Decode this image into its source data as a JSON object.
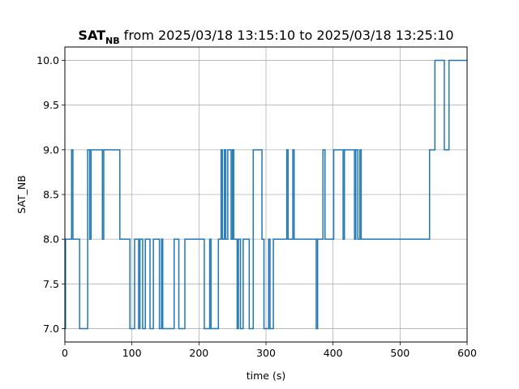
{
  "chart_data": {
    "type": "line",
    "title_main": "SAT",
    "title_sub": "NB",
    "title_rest": " from 2025/03/18 13:15:10 to 2025/03/18 13:25:10",
    "xlabel": "time (s)",
    "ylabel": "SAT_NB",
    "xlim": [
      0,
      600
    ],
    "ylim": [
      6.85,
      10.15
    ],
    "xticks": [
      0,
      100,
      200,
      300,
      400,
      500,
      600
    ],
    "xtick_labels": [
      "0",
      "100",
      "200",
      "300",
      "400",
      "500",
      "600"
    ],
    "yticks": [
      7.0,
      7.5,
      8.0,
      8.5,
      9.0,
      9.5,
      10.0
    ],
    "ytick_labels": [
      "7.0",
      "7.5",
      "8.0",
      "8.5",
      "9.0",
      "9.5",
      "10.0"
    ],
    "grid": true,
    "step": "post",
    "series": [
      {
        "color": "#1f77b4",
        "points": [
          [
            0,
            7
          ],
          [
            1,
            8
          ],
          [
            10,
            9
          ],
          [
            12,
            8
          ],
          [
            22,
            7
          ],
          [
            34,
            9
          ],
          [
            37,
            8
          ],
          [
            39,
            9
          ],
          [
            56,
            8
          ],
          [
            58,
            9
          ],
          [
            82,
            8
          ],
          [
            97,
            7
          ],
          [
            104,
            8
          ],
          [
            110,
            7
          ],
          [
            112,
            8
          ],
          [
            116,
            7
          ],
          [
            120,
            8
          ],
          [
            127,
            7
          ],
          [
            132,
            8
          ],
          [
            141,
            7
          ],
          [
            144,
            8
          ],
          [
            146,
            7
          ],
          [
            163,
            8
          ],
          [
            170,
            7
          ],
          [
            179,
            8
          ],
          [
            208,
            7
          ],
          [
            216,
            8
          ],
          [
            218,
            7
          ],
          [
            229,
            8
          ],
          [
            233,
            9
          ],
          [
            235,
            8
          ],
          [
            238,
            9
          ],
          [
            240,
            8
          ],
          [
            243,
            9
          ],
          [
            248,
            8
          ],
          [
            250,
            9
          ],
          [
            252,
            8
          ],
          [
            257,
            7
          ],
          [
            259,
            8
          ],
          [
            262,
            7
          ],
          [
            266,
            8
          ],
          [
            275,
            7
          ],
          [
            281,
            9
          ],
          [
            294,
            8
          ],
          [
            297,
            7
          ],
          [
            304,
            8
          ],
          [
            306,
            7
          ],
          [
            311,
            8
          ],
          [
            331,
            9
          ],
          [
            333,
            8
          ],
          [
            340,
            9
          ],
          [
            342,
            8
          ],
          [
            375,
            7
          ],
          [
            377,
            8
          ],
          [
            385,
            9
          ],
          [
            388,
            8
          ],
          [
            401,
            9
          ],
          [
            415,
            8
          ],
          [
            417,
            9
          ],
          [
            432,
            8
          ],
          [
            434,
            9
          ],
          [
            437,
            8
          ],
          [
            440,
            9
          ],
          [
            442,
            8
          ],
          [
            445,
            8
          ],
          [
            544,
            9
          ],
          [
            552,
            10
          ],
          [
            566,
            9
          ],
          [
            573,
            10
          ],
          [
            600,
            10
          ]
        ]
      }
    ]
  }
}
